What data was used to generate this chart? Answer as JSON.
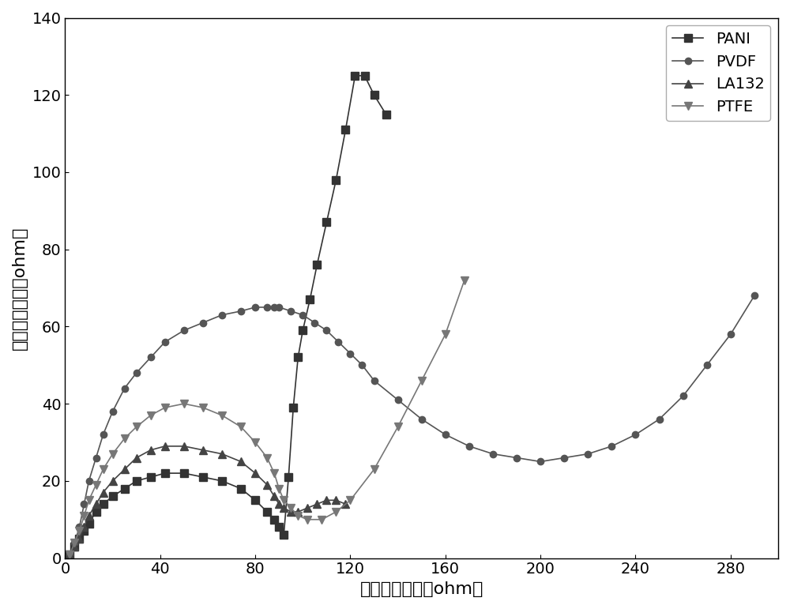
{
  "title": "",
  "xlabel": "阻抗实部（欧姆ohm）",
  "ylabel": "阻抗虚部（欧姆ohm）",
  "xlim": [
    0,
    300
  ],
  "ylim": [
    0,
    140
  ],
  "xticks": [
    0,
    40,
    80,
    120,
    160,
    200,
    240,
    280
  ],
  "yticks": [
    0,
    20,
    40,
    60,
    80,
    100,
    120,
    140
  ],
  "background_color": "#ffffff",
  "series": {
    "PANI": {
      "color": "#333333",
      "marker": "s",
      "markersize": 7,
      "linewidth": 1.2,
      "x": [
        2,
        4,
        6,
        8,
        10,
        13,
        16,
        20,
        25,
        30,
        36,
        42,
        50,
        58,
        66,
        74,
        80,
        85,
        88,
        90,
        92,
        94,
        96,
        98,
        100,
        103,
        106,
        110,
        114,
        118,
        122,
        126,
        130,
        135
      ],
      "y": [
        1,
        3,
        5,
        7,
        9,
        12,
        14,
        16,
        18,
        20,
        21,
        22,
        22,
        21,
        20,
        18,
        15,
        12,
        10,
        8,
        6,
        21,
        39,
        52,
        59,
        67,
        76,
        87,
        98,
        111,
        125,
        125,
        120,
        115
      ]
    },
    "PVDF": {
      "color": "#555555",
      "marker": "o",
      "markersize": 6,
      "linewidth": 1.2,
      "x": [
        2,
        4,
        6,
        8,
        10,
        13,
        16,
        20,
        25,
        30,
        36,
        42,
        50,
        58,
        66,
        74,
        80,
        85,
        88,
        90,
        95,
        100,
        105,
        110,
        115,
        120,
        125,
        130,
        140,
        150,
        160,
        170,
        180,
        190,
        200,
        210,
        220,
        230,
        240,
        250,
        260,
        270,
        280,
        290
      ],
      "y": [
        1,
        4,
        8,
        14,
        20,
        26,
        32,
        38,
        44,
        48,
        52,
        56,
        59,
        61,
        63,
        64,
        65,
        65,
        65,
        65,
        64,
        63,
        61,
        59,
        56,
        53,
        50,
        46,
        41,
        36,
        32,
        29,
        27,
        26,
        25,
        26,
        27,
        29,
        32,
        36,
        42,
        50,
        58,
        68
      ]
    },
    "LA132": {
      "color": "#444444",
      "marker": "^",
      "markersize": 7,
      "linewidth": 1.2,
      "x": [
        2,
        4,
        6,
        8,
        10,
        13,
        16,
        20,
        25,
        30,
        36,
        42,
        50,
        58,
        66,
        74,
        80,
        85,
        88,
        90,
        92,
        95,
        98,
        102,
        106,
        110,
        114,
        118
      ],
      "y": [
        1,
        3,
        5,
        8,
        11,
        14,
        17,
        20,
        23,
        26,
        28,
        29,
        29,
        28,
        27,
        25,
        22,
        19,
        16,
        14,
        13,
        12,
        12,
        13,
        14,
        15,
        15,
        14
      ]
    },
    "PTFE": {
      "color": "#777777",
      "marker": "v",
      "markersize": 7,
      "linewidth": 1.2,
      "x": [
        2,
        4,
        6,
        8,
        10,
        13,
        16,
        20,
        25,
        30,
        36,
        42,
        50,
        58,
        66,
        74,
        80,
        85,
        88,
        90,
        92,
        95,
        98,
        102,
        108,
        114,
        120,
        130,
        140,
        150,
        160,
        168
      ],
      "y": [
        1,
        4,
        7,
        11,
        15,
        19,
        23,
        27,
        31,
        34,
        37,
        39,
        40,
        39,
        37,
        34,
        30,
        26,
        22,
        18,
        15,
        13,
        11,
        10,
        10,
        12,
        15,
        23,
        34,
        46,
        58,
        72
      ]
    }
  },
  "legend_loc": "upper right",
  "legend_fontsize": 14,
  "axis_fontsize": 16,
  "tick_fontsize": 14
}
